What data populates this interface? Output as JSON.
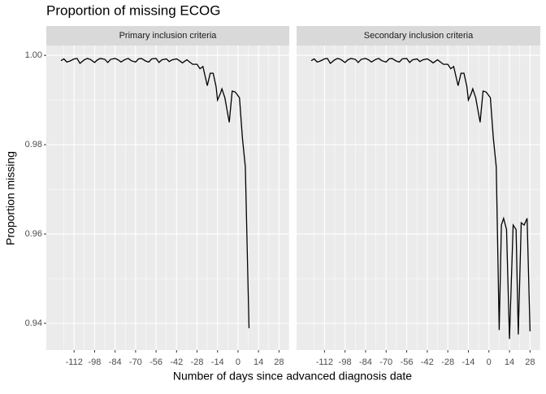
{
  "title": "Proportion of missing ECOG",
  "x_label": "Number of days since advanced diagnosis date",
  "y_label": "Proportion missing",
  "chart_data": [
    {
      "type": "line",
      "title": "Primary inclusion criteria",
      "color": "#000000",
      "x": [
        -121,
        -119,
        -117,
        -115,
        -112,
        -110,
        -108,
        -105,
        -103,
        -101,
        -98,
        -96,
        -94,
        -91,
        -89,
        -87,
        -84,
        -82,
        -80,
        -77,
        -75,
        -73,
        -70,
        -68,
        -66,
        -63,
        -61,
        -59,
        -56,
        -54,
        -52,
        -49,
        -47,
        -45,
        -42,
        -40,
        -38,
        -35,
        -33,
        -31,
        -28,
        -26,
        -24,
        -21,
        -19,
        -17,
        -15,
        -14,
        -12,
        -11,
        -9,
        -6,
        -4,
        -2,
        -1,
        1,
        3,
        5,
        7.5
      ],
      "values": [
        0.9988,
        0.9992,
        0.9985,
        0.9987,
        0.9992,
        0.9993,
        0.9982,
        0.999,
        0.9993,
        0.9991,
        0.9984,
        0.999,
        0.9993,
        0.9991,
        0.9984,
        0.9991,
        0.9993,
        0.999,
        0.9985,
        0.9991,
        0.9993,
        0.9988,
        0.9985,
        0.9992,
        0.9993,
        0.9987,
        0.9985,
        0.9992,
        0.9993,
        0.9984,
        0.999,
        0.9992,
        0.9986,
        0.999,
        0.9992,
        0.9988,
        0.9983,
        0.999,
        0.9985,
        0.998,
        0.998,
        0.997,
        0.9975,
        0.9932,
        0.996,
        0.996,
        0.993,
        0.99,
        0.9915,
        0.9925,
        0.9905,
        0.985,
        0.992,
        0.9918,
        0.9914,
        0.9905,
        0.9815,
        0.975,
        0.9389
      ],
      "xlim": [
        -131,
        35
      ],
      "ylim": [
        0.934,
        1.0022
      ],
      "xticks": [
        -112,
        -98,
        -84,
        -70,
        -56,
        -42,
        -28,
        -14,
        0,
        14,
        28
      ],
      "yticks": [
        {
          "value": 0.94,
          "label": "0.94"
        },
        {
          "value": 0.96,
          "label": "0.96"
        },
        {
          "value": 0.98,
          "label": "0.98"
        },
        {
          "value": 1,
          "label": "1.00"
        }
      ]
    },
    {
      "type": "line",
      "title": "Secondary inclusion criteria",
      "color": "#000000",
      "x": [
        -121,
        -119,
        -117,
        -115,
        -112,
        -110,
        -108,
        -105,
        -103,
        -101,
        -98,
        -96,
        -94,
        -91,
        -89,
        -87,
        -84,
        -82,
        -80,
        -77,
        -75,
        -73,
        -70,
        -68,
        -66,
        -63,
        -61,
        -59,
        -56,
        -54,
        -52,
        -49,
        -47,
        -45,
        -42,
        -40,
        -38,
        -35,
        -33,
        -31,
        -28,
        -26,
        -24,
        -21,
        -19,
        -17,
        -15,
        -14,
        -12,
        -11,
        -9,
        -6,
        -4,
        -2,
        -1,
        1,
        3,
        5,
        7,
        8.5,
        10,
        12,
        14,
        16.5,
        18.5,
        20,
        22,
        24,
        26,
        28
      ],
      "values": [
        0.9988,
        0.9992,
        0.9985,
        0.9987,
        0.9992,
        0.9993,
        0.9982,
        0.999,
        0.9993,
        0.9991,
        0.9984,
        0.999,
        0.9993,
        0.9991,
        0.9984,
        0.9991,
        0.9993,
        0.999,
        0.9985,
        0.9991,
        0.9993,
        0.9988,
        0.9985,
        0.9992,
        0.9993,
        0.9987,
        0.9985,
        0.9992,
        0.9993,
        0.9984,
        0.999,
        0.9992,
        0.9986,
        0.999,
        0.9992,
        0.9988,
        0.9983,
        0.999,
        0.9985,
        0.998,
        0.998,
        0.997,
        0.9975,
        0.9932,
        0.996,
        0.996,
        0.993,
        0.99,
        0.9915,
        0.9925,
        0.9905,
        0.985,
        0.992,
        0.9918,
        0.9914,
        0.9905,
        0.9815,
        0.975,
        0.9385,
        0.962,
        0.9635,
        0.961,
        0.9365,
        0.962,
        0.961,
        0.9375,
        0.9625,
        0.962,
        0.9635,
        0.9382
      ],
      "xlim": [
        -131,
        35
      ],
      "ylim": [
        0.934,
        1.0022
      ],
      "xticks": [
        -112,
        -98,
        -84,
        -70,
        -56,
        -42,
        -28,
        -14,
        0,
        14,
        28
      ],
      "yticks": [
        {
          "value": 0.94,
          "label": "0.94"
        },
        {
          "value": 0.96,
          "label": "0.96"
        },
        {
          "value": 0.98,
          "label": "0.98"
        },
        {
          "value": 1,
          "label": "1.00"
        }
      ]
    }
  ]
}
